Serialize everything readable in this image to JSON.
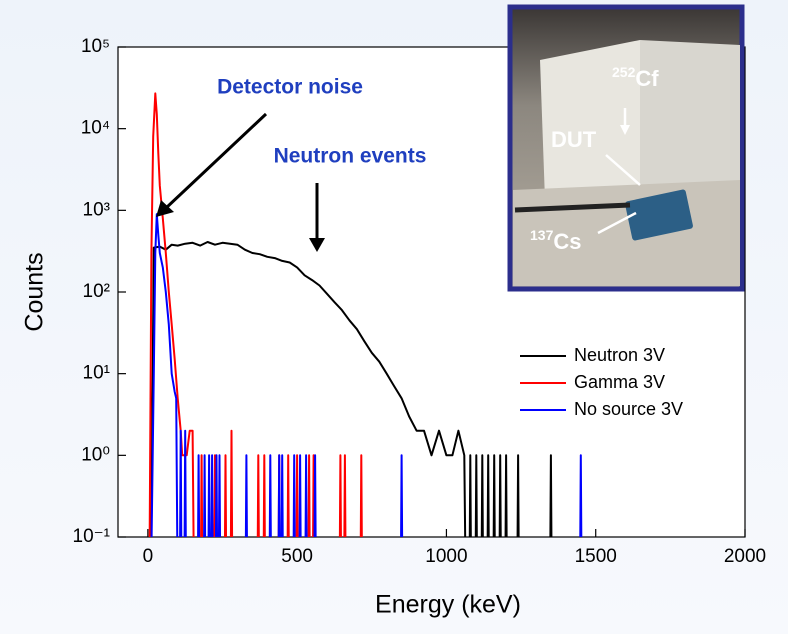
{
  "chart_data": {
    "type": "line",
    "xlabel": "Energy (keV)",
    "ylabel": "Counts",
    "xlim": [
      -100,
      2000
    ],
    "xticks": [
      0,
      500,
      1000,
      1500,
      2000
    ],
    "ylim": [
      0.1,
      100000
    ],
    "yscale": "log",
    "yticks": [
      {
        "value": 0.1,
        "label": "10⁻¹"
      },
      {
        "value": 1,
        "label": "10⁰"
      },
      {
        "value": 10,
        "label": "10¹"
      },
      {
        "value": 100,
        "label": "10²"
      },
      {
        "value": 1000,
        "label": "10³"
      },
      {
        "value": 10000,
        "label": "10⁴"
      },
      {
        "value": 100000,
        "label": "10⁵"
      }
    ],
    "legend": "right",
    "series": [
      {
        "name": "Neutron 3V",
        "color": "#000000",
        "x": [
          10,
          20,
          40,
          60,
          80,
          100,
          125,
          150,
          175,
          200,
          225,
          250,
          275,
          300,
          325,
          350,
          375,
          400,
          425,
          450,
          475,
          500,
          525,
          550,
          575,
          600,
          625,
          650,
          675,
          700,
          725,
          750,
          775,
          800,
          825,
          850,
          875,
          900,
          925,
          950,
          975,
          1000,
          1020,
          1040,
          1060,
          1065,
          1077,
          1080,
          1083,
          1097,
          1100,
          1103,
          1117,
          1120,
          1123,
          1137,
          1140,
          1143,
          1157,
          1160,
          1163,
          1177,
          1180,
          1183,
          1197,
          1200,
          1203,
          1237,
          1240,
          1243,
          1347,
          1350,
          1353
        ],
        "values": [
          0,
          350,
          360,
          330,
          380,
          370,
          390,
          400,
          370,
          410,
          380,
          400,
          390,
          380,
          330,
          300,
          290,
          270,
          260,
          240,
          230,
          200,
          160,
          140,
          120,
          95,
          75,
          60,
          45,
          35,
          25,
          18,
          14,
          10,
          7,
          5,
          3,
          2,
          2,
          1,
          2,
          1,
          1,
          2,
          1,
          0,
          0,
          1,
          0,
          0,
          1,
          0,
          0,
          1,
          0,
          0,
          1,
          0,
          0,
          1,
          0,
          0,
          1,
          0,
          0,
          1,
          0,
          0,
          1,
          0,
          0,
          1,
          0
        ]
      },
      {
        "name": "Gamma 3V",
        "color": "#ff0000",
        "x": [
          5,
          12,
          18,
          25,
          30,
          35,
          40,
          50,
          60,
          70,
          80,
          90,
          100,
          110,
          115,
          130,
          140,
          150,
          155,
          177,
          180,
          183,
          222,
          225,
          228,
          257,
          260,
          263,
          277,
          280,
          283,
          367,
          370,
          373,
          387,
          390,
          393,
          437,
          440,
          443,
          467,
          470,
          473,
          497,
          500,
          503,
          537,
          540,
          543,
          552,
          555,
          558,
          642,
          645,
          648,
          657,
          660,
          663,
          712,
          715,
          718
        ],
        "values": [
          0,
          300,
          8000,
          27000,
          15000,
          5000,
          2000,
          800,
          300,
          100,
          40,
          15,
          5,
          2,
          1,
          1,
          2,
          2,
          0,
          0,
          1,
          0,
          0,
          1,
          0,
          0,
          1,
          0,
          0,
          2,
          0,
          0,
          1,
          0,
          0,
          1,
          0,
          0,
          1,
          0,
          0,
          1,
          0,
          0,
          1,
          0,
          0,
          1,
          0,
          0,
          1,
          0,
          0,
          1,
          0,
          0,
          1,
          0,
          0,
          1,
          0
        ]
      },
      {
        "name": "No source 3V",
        "color": "#0000ff",
        "x": [
          10,
          20,
          25,
          30,
          35,
          40,
          50,
          60,
          70,
          80,
          90,
          95,
          100,
          107,
          110,
          113,
          122,
          125,
          128,
          167,
          170,
          173,
          187,
          190,
          193,
          202,
          205,
          208,
          212,
          215,
          218,
          227,
          230,
          233,
          237,
          240,
          243,
          327,
          330,
          333,
          407,
          410,
          413,
          437,
          440,
          443,
          447,
          450,
          453,
          487,
          490,
          493,
          507,
          510,
          513,
          527,
          530,
          533,
          557,
          560,
          563,
          847,
          850,
          853,
          1447,
          1450,
          1453
        ],
        "values": [
          0,
          10,
          300,
          900,
          500,
          300,
          200,
          100,
          40,
          10,
          6,
          5,
          0,
          0,
          2,
          0,
          0,
          2,
          0,
          0,
          1,
          0,
          0,
          1,
          0,
          0,
          1,
          0,
          0,
          1,
          0,
          0,
          1,
          0,
          0,
          1,
          0,
          0,
          1,
          0,
          0,
          1,
          0,
          0,
          1,
          0,
          0,
          1,
          0,
          0,
          1,
          0,
          0,
          1,
          0,
          0,
          1,
          0,
          0,
          1,
          0,
          0,
          1,
          0,
          0,
          1,
          0
        ]
      }
    ],
    "annotations": [
      {
        "text": "Detector noise",
        "color": "#1f3fbf"
      },
      {
        "text": "Neutron events",
        "color": "#1f3fbf"
      }
    ]
  },
  "inset_photo": {
    "labels": [
      {
        "superscript": "252",
        "text": "Cf"
      },
      {
        "text": "DUT"
      },
      {
        "superscript": "137",
        "text": "Cs"
      }
    ]
  }
}
